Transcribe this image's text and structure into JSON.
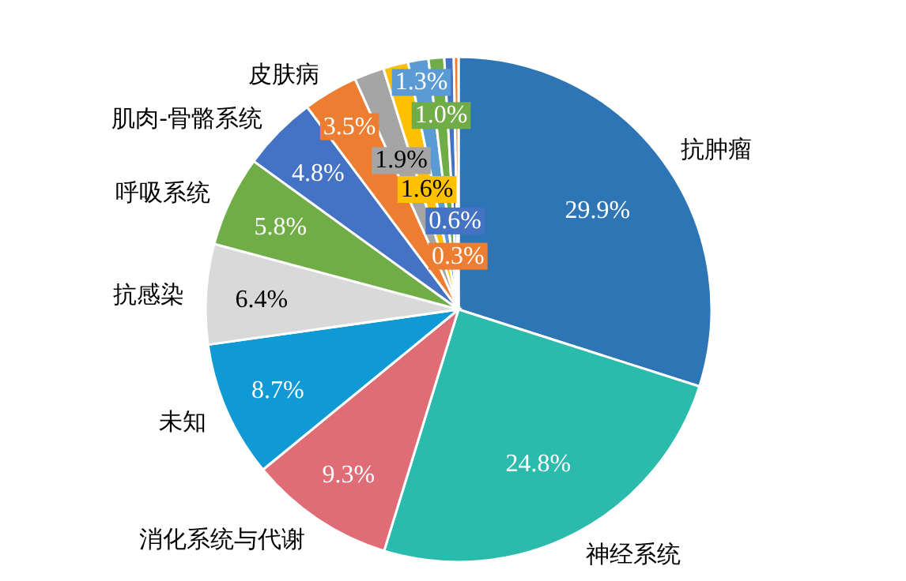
{
  "chart_data": {
    "type": "pie",
    "categories": [
      "抗肿瘤",
      "神经系统",
      "消化系统与代谢",
      "未知",
      "抗感染",
      "呼吸系统",
      "肌肉-骨骼系统",
      "皮肤病",
      null,
      null,
      null,
      null,
      null,
      null
    ],
    "values": [
      29.9,
      24.8,
      9.3,
      8.7,
      6.4,
      5.8,
      4.8,
      3.5,
      1.9,
      1.6,
      1.3,
      1.0,
      0.6,
      0.3
    ],
    "colors": [
      "#2e75b6",
      "#2bbbad",
      "#e06c75",
      "#0f9ad6",
      "#d9d9d9",
      "#70ad47",
      "#4472c4",
      "#ed7d31",
      "#a5a5a5",
      "#ffc000",
      "#5b9bd5",
      "#70ad47",
      "#4472c4",
      "#ed7d31"
    ],
    "value_labels": [
      "29.9%",
      "24.8%",
      "9.3%",
      "8.7%",
      "6.4%",
      "5.8%",
      "4.8%",
      "3.5%",
      "1.9%",
      "1.6%",
      "1.3%",
      "1.0%",
      "0.6%",
      "0.3%"
    ]
  }
}
